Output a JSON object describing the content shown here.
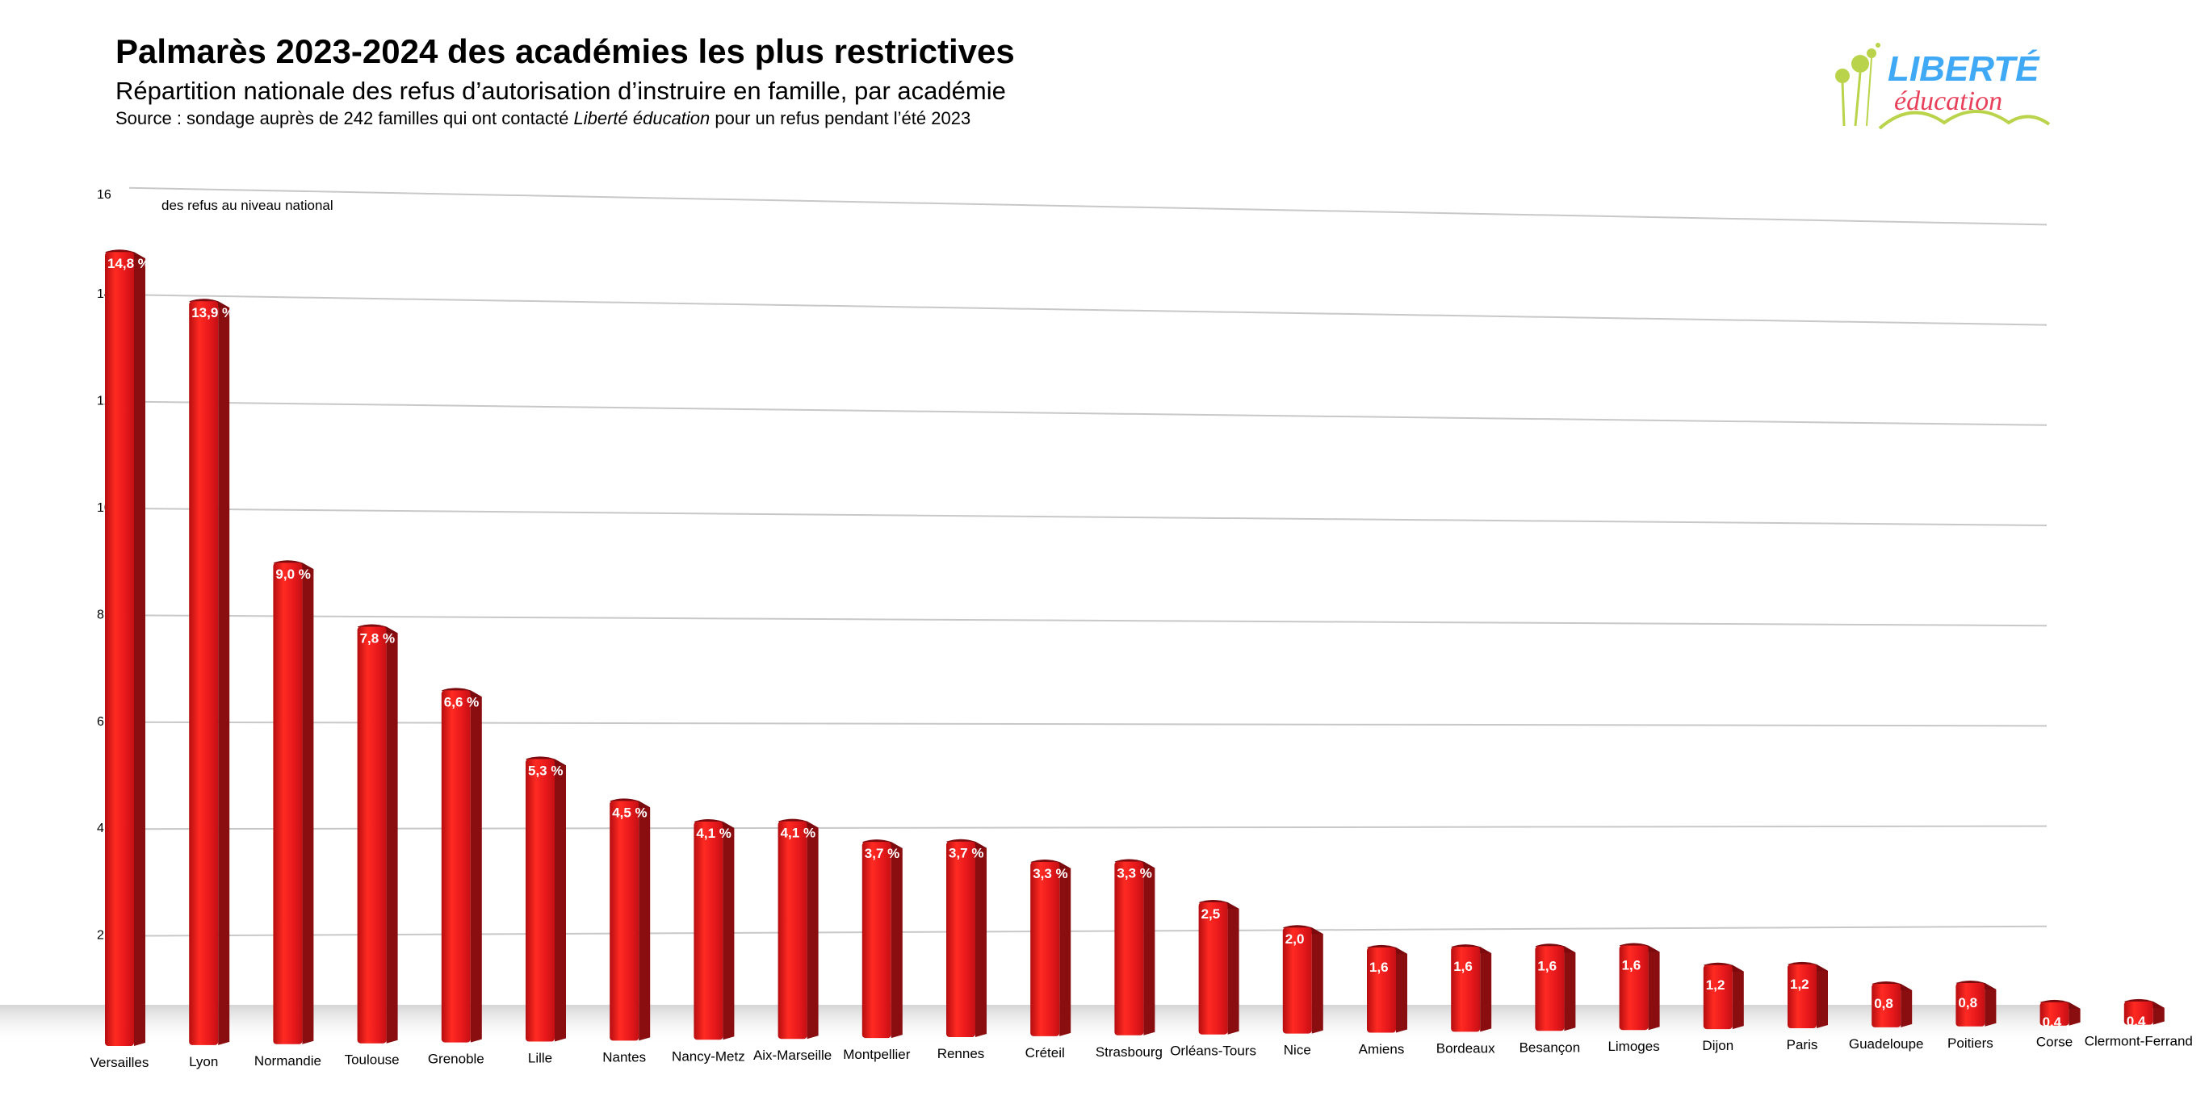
{
  "header": {
    "title": "Palmarès 2023-2024 des académies les plus restrictives",
    "subtitle": "Répartition nationale des refus d’autorisation d’instruire en famille, par académie",
    "source_prefix": "Source : sondage auprès de 242 familles qui ont contacté ",
    "source_brand": "Liberté éducation",
    "source_suffix": " pour un refus pendant l’été 2023"
  },
  "logo": {
    "line1": "LIBERTÉ",
    "line2": "éducation",
    "color_line1": "#3fa9f5",
    "color_line2": "#e8405a",
    "color_accent": "#b9d44a"
  },
  "chart_data": {
    "type": "bar",
    "categories": [
      "Versailles",
      "Lyon",
      "Normandie",
      "Toulouse",
      "Grenoble",
      "Lille",
      "Nantes",
      "Nancy-Metz",
      "Aix-Marseille",
      "Montpellier",
      "Rennes",
      "Créteil",
      "Strasbourg",
      "Orléans-Tours",
      "Nice",
      "Amiens",
      "Bordeaux",
      "Besançon",
      "Limoges",
      "Dijon",
      "Paris",
      "Guadeloupe",
      "Poitiers",
      "Corse",
      "Clermont-Ferrand"
    ],
    "values": [
      14.8,
      13.9,
      9.0,
      7.8,
      6.6,
      5.3,
      4.5,
      4.1,
      4.1,
      3.7,
      3.7,
      3.3,
      3.3,
      2.5,
      2.0,
      1.6,
      1.6,
      1.6,
      1.6,
      1.2,
      1.2,
      0.8,
      0.8,
      0.4,
      0.4
    ],
    "data_labels": [
      "14,8 %",
      "13,9 %",
      "9,0 %",
      "7,8 %",
      "6,6 %",
      "5,3 %",
      "4,5 %",
      "4,1 %",
      "4,1 %",
      "3,7 %",
      "3,7 %",
      "3,3 %",
      "3,3 %",
      "2,5",
      "2,0",
      "1,6",
      "1,6",
      "1,6",
      "1,6",
      "1,2",
      "1,2",
      "0,8",
      "0,8",
      "0,4",
      "0,4"
    ],
    "annotation": "des refus au niveau national",
    "yticks": [
      "16",
      "14",
      "12",
      "10",
      "8",
      "6",
      "4",
      "2"
    ],
    "ylim": [
      0,
      16
    ],
    "grid": true,
    "bar_color": "#e8191c",
    "bar_shadow_color": "#8a0d10"
  }
}
